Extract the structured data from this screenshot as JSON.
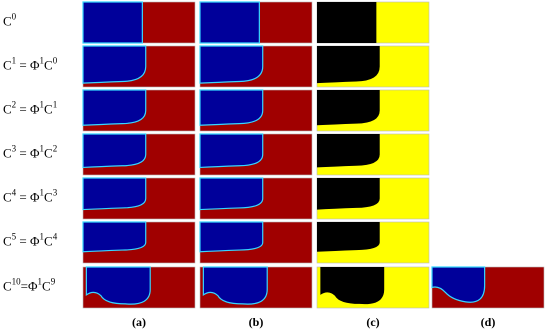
{
  "rows": [
    {
      "label": [
        "C",
        "0"
      ]
    },
    {
      "label": [
        "C",
        "1",
        " = Φ",
        "1",
        "C",
        "0"
      ]
    },
    {
      "label": [
        "C",
        "2",
        " = Φ",
        "1",
        "C",
        "1"
      ]
    },
    {
      "label": [
        "C",
        "3",
        " = Φ",
        "1",
        "C",
        "2"
      ]
    },
    {
      "label": [
        "C",
        "4",
        " = Φ",
        "1",
        "C",
        "3"
      ]
    },
    {
      "label": [
        "C",
        "5",
        " = Φ",
        "1",
        "C",
        "4"
      ]
    },
    {
      "label": [
        "C",
        "10",
        "=Φ",
        "1",
        "C",
        "9"
      ]
    }
  ],
  "columns": [
    "(a)",
    "(b)",
    "(c)",
    "(d)"
  ]
}
